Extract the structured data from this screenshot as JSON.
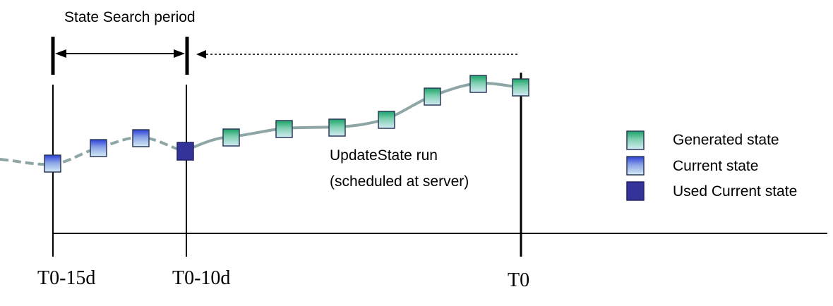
{
  "header": {
    "period_label": "State Search period"
  },
  "annotation": {
    "line1": "UpdateState run",
    "line2": "(scheduled at server)"
  },
  "axis": {
    "ticks": [
      {
        "label": "T0-15d"
      },
      {
        "label": "T0-10d"
      },
      {
        "label": "T0"
      }
    ]
  },
  "legend": {
    "items": [
      {
        "label": "Generated state",
        "kind": "generated"
      },
      {
        "label": "Current state",
        "kind": "current"
      },
      {
        "label": "Used Current state",
        "kind": "used"
      }
    ]
  },
  "states": {
    "kinds_in_order": [
      "current",
      "current",
      "current",
      "used",
      "generated",
      "generated",
      "generated",
      "generated",
      "generated",
      "generated",
      "generated"
    ]
  },
  "colors": {
    "line": "#8ea6a6",
    "axis": "#000000",
    "generated_top": "#1aa36a",
    "generated_bottom": "#c9e6ef",
    "current_top": "#2b3fd6",
    "current_bottom": "#c9e6ef",
    "used_fill": "#33339a",
    "square_border": "#2c3a5a"
  }
}
